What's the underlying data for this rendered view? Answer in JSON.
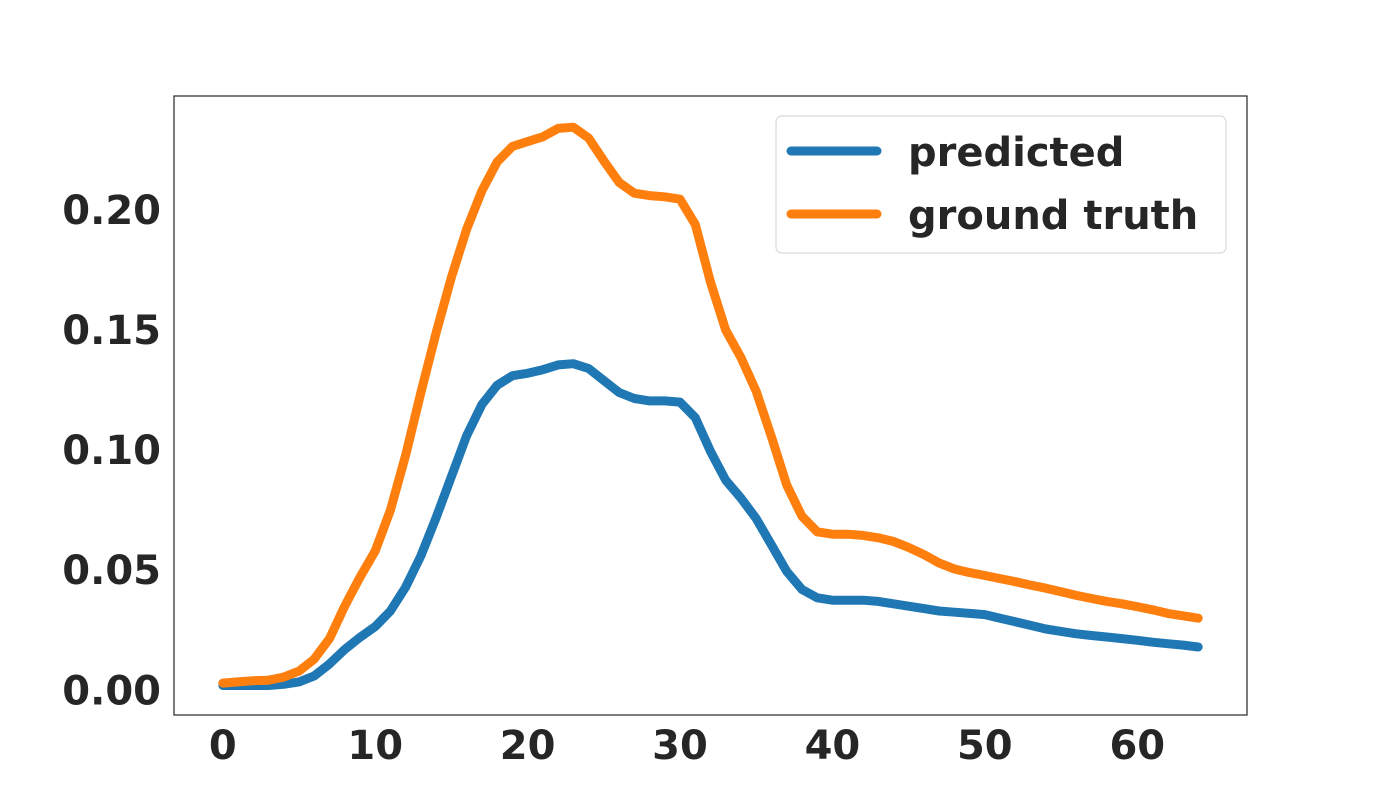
{
  "chart_data": {
    "type": "line",
    "title": "",
    "xlabel": "",
    "ylabel": "",
    "xlim": [
      -3.2,
      67.2
    ],
    "ylim": [
      -0.0103,
      0.2475
    ],
    "xticks": [
      0,
      10,
      20,
      30,
      40,
      50,
      60
    ],
    "yticks": [
      0.0,
      0.05,
      0.1,
      0.15,
      0.2
    ],
    "xtick_labels": [
      "0",
      "10",
      "20",
      "30",
      "40",
      "50",
      "60"
    ],
    "ytick_labels": [
      "0.00",
      "0.05",
      "0.10",
      "0.15",
      "0.20"
    ],
    "grid": false,
    "legend_position": "top-right",
    "x": [
      0,
      1,
      2,
      3,
      4,
      5,
      6,
      7,
      8,
      9,
      10,
      11,
      12,
      13,
      14,
      15,
      16,
      17,
      18,
      19,
      20,
      21,
      22,
      23,
      24,
      25,
      26,
      27,
      28,
      29,
      30,
      31,
      32,
      33,
      34,
      35,
      36,
      37,
      38,
      39,
      40,
      41,
      42,
      43,
      44,
      45,
      46,
      47,
      48,
      49,
      50,
      51,
      52,
      53,
      54,
      55,
      56,
      57,
      58,
      59,
      60,
      61,
      62,
      63,
      64
    ],
    "series": [
      {
        "name": "predicted",
        "color": "#1f77b4",
        "values": [
          0.002,
          0.002,
          0.002,
          0.002,
          0.0025,
          0.0035,
          0.006,
          0.011,
          0.017,
          0.022,
          0.0265,
          0.033,
          0.043,
          0.056,
          0.072,
          0.089,
          0.106,
          0.119,
          0.127,
          0.131,
          0.132,
          0.1335,
          0.1355,
          0.136,
          0.134,
          0.129,
          0.124,
          0.1215,
          0.1205,
          0.1205,
          0.12,
          0.1135,
          0.0995,
          0.0875,
          0.08,
          0.0715,
          0.0605,
          0.0495,
          0.042,
          0.0385,
          0.0375,
          0.0375,
          0.0375,
          0.037,
          0.036,
          0.035,
          0.034,
          0.033,
          0.0325,
          0.032,
          0.0315,
          0.03,
          0.0285,
          0.027,
          0.0255,
          0.0245,
          0.0235,
          0.0228,
          0.0222,
          0.0215,
          0.0208,
          0.02,
          0.0194,
          0.0188,
          0.018
        ]
      },
      {
        "name": "ground truth",
        "color": "#ff7f0e",
        "values": [
          0.003,
          0.0035,
          0.004,
          0.0042,
          0.0055,
          0.008,
          0.013,
          0.0215,
          0.035,
          0.047,
          0.058,
          0.075,
          0.098,
          0.124,
          0.149,
          0.172,
          0.192,
          0.208,
          0.22,
          0.2265,
          0.2285,
          0.2305,
          0.234,
          0.2345,
          0.23,
          0.2205,
          0.2115,
          0.207,
          0.206,
          0.2055,
          0.2045,
          0.194,
          0.17,
          0.15,
          0.1385,
          0.1245,
          0.1055,
          0.0855,
          0.0725,
          0.066,
          0.065,
          0.065,
          0.0645,
          0.0635,
          0.062,
          0.0595,
          0.0565,
          0.053,
          0.0505,
          0.049,
          0.0478,
          0.0465,
          0.0452,
          0.0438,
          0.0425,
          0.041,
          0.0395,
          0.0382,
          0.037,
          0.036,
          0.0348,
          0.0335,
          0.032,
          0.031,
          0.03
        ]
      }
    ]
  }
}
